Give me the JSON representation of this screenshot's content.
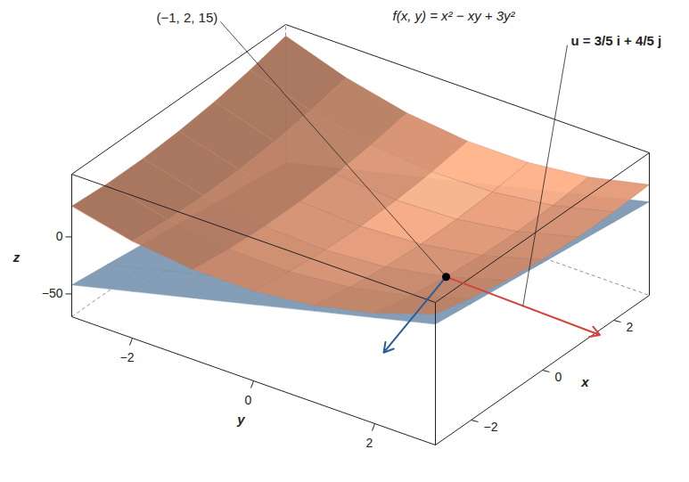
{
  "chart_data": {
    "type": "surface3d",
    "title": "f(x, y) = x² − xy + 3y²",
    "x_label": "x",
    "y_label": "y",
    "z_label": "z",
    "xlim": [
      -3,
      3
    ],
    "ylim": [
      -3,
      3
    ],
    "zlim": [
      -70,
      55
    ],
    "xticks": [
      -2,
      0,
      2
    ],
    "yticks": [
      -2,
      0,
      2
    ],
    "zticks": [
      -50,
      0
    ],
    "grid_x": [
      -3,
      -2,
      -1,
      0,
      1,
      2,
      3
    ],
    "grid_y": [
      -3,
      -2,
      -1,
      0,
      1,
      2,
      3
    ],
    "series": [
      {
        "type": "plane",
        "color": "#8fb1cf",
        "z": [
          [
            -42,
            -29,
            -16,
            -3,
            10,
            23,
            36
          ],
          [
            -46,
            -33,
            -20,
            -7,
            6,
            19,
            32
          ],
          [
            -50,
            -37,
            -24,
            -11,
            2,
            15,
            28
          ],
          [
            -54,
            -41,
            -28,
            -15,
            -2,
            11,
            24
          ],
          [
            -58,
            -45,
            -32,
            -19,
            -6,
            7,
            20
          ],
          [
            -62,
            -49,
            -36,
            -23,
            -10,
            3,
            16
          ],
          [
            -66,
            -53,
            -40,
            -27,
            -14,
            -1,
            12
          ]
        ]
      },
      {
        "type": "surface",
        "color": "#f2a27c",
        "z": [
          [
            27,
            15,
            9,
            9,
            15,
            27,
            45
          ],
          [
            25,
            12,
            5,
            4,
            9,
            20,
            37
          ],
          [
            25,
            11,
            3,
            1,
            5,
            15,
            31
          ],
          [
            27,
            12,
            3,
            0,
            3,
            12,
            27
          ],
          [
            31,
            15,
            5,
            1,
            3,
            11,
            25
          ],
          [
            37,
            20,
            9,
            4,
            5,
            12,
            25
          ],
          [
            45,
            27,
            15,
            9,
            9,
            15,
            27
          ]
        ]
      }
    ],
    "points": [
      {
        "x": -1,
        "y": 2,
        "z": 15,
        "label": "(−1, 2, 15)",
        "color": "#000000"
      }
    ],
    "vectors": [
      {
        "label": "u = 3/5 i + 4/5 j",
        "dx": 0.6,
        "dy": 0.8,
        "color": "#d6423a"
      }
    ]
  }
}
